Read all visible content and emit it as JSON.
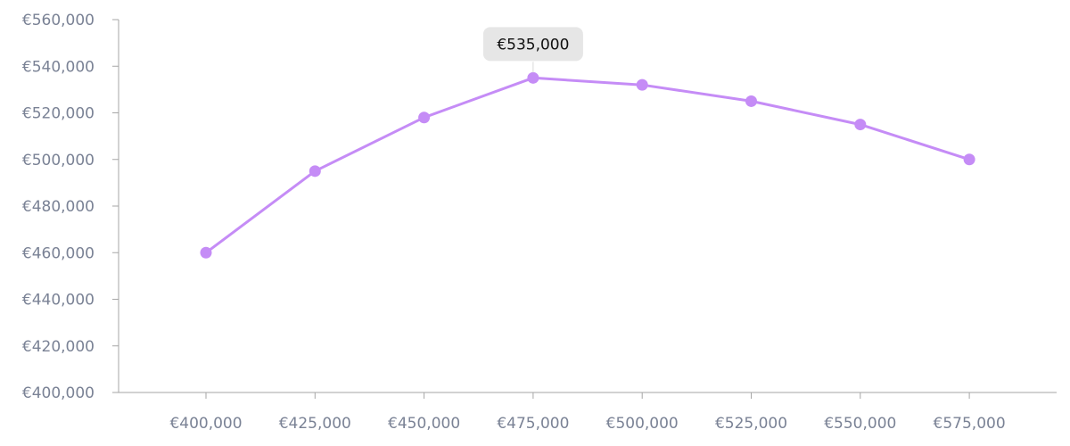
{
  "chart_data": {
    "type": "line",
    "title": "",
    "xlabel": "",
    "ylabel": "",
    "x": [
      400000,
      425000,
      450000,
      475000,
      500000,
      525000,
      550000,
      575000
    ],
    "x_tick_labels": [
      "€400,000",
      "€425,000",
      "€450,000",
      "€475,000",
      "€500,000",
      "€525,000",
      "€550,000",
      "€575,000"
    ],
    "series": [
      {
        "values": [
          460000,
          495000,
          518000,
          535000,
          532000,
          525000,
          515000,
          500000
        ],
        "color": "#c58cf6"
      }
    ],
    "ylim": [
      400000,
      560000
    ],
    "y_ticks": [
      400000,
      420000,
      440000,
      460000,
      480000,
      500000,
      520000,
      540000,
      560000
    ],
    "y_tick_labels": [
      "€400,000",
      "€420,000",
      "€440,000",
      "€460,000",
      "€480,000",
      "€500,000",
      "€520,000",
      "€540,000",
      "€560,000"
    ],
    "grid": false,
    "legend": "none",
    "tooltip": {
      "point_index": 3,
      "label": "€535,000"
    },
    "axis_color": "#a6a6a6",
    "tick_label_color": "#7a8295",
    "tooltip_bg": "#e6e6e6"
  }
}
